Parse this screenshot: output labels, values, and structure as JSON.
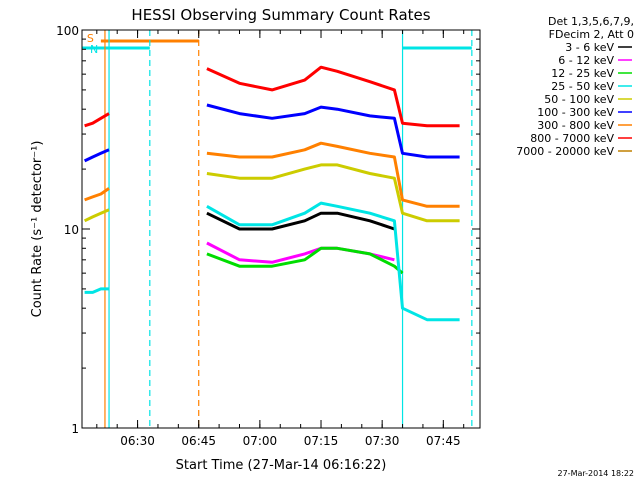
{
  "chart_data": {
    "type": "line",
    "title": "HESSI Observing Summary Count Rates",
    "xlabel": "Start Time (27-Mar-14 06:16:22)",
    "ylabel": "Count Rate (s⁻¹ detector⁻¹)",
    "y_scale": "log",
    "ylim": [
      1,
      100
    ],
    "xlim_minutes": [
      "06:16:22",
      "07:54:00"
    ],
    "x_ticks": [
      "06:30",
      "06:45",
      "07:00",
      "07:15",
      "07:30",
      "07:45"
    ],
    "y_ticks": [
      "1",
      "10",
      "100"
    ],
    "legend_header": [
      "Det 1,3,5,6,7,9,",
      "FDecim 2, Att 0"
    ],
    "legend_position": "right-outside",
    "footer": "27-Mar-2014 18:22",
    "flags": [
      {
        "label": "S",
        "color": "#ff8000",
        "start": "06:21",
        "end": "06:45"
      },
      {
        "label": "N",
        "color": "#00e5e5",
        "start": "06:16:22",
        "end": "06:33"
      },
      {
        "label": "",
        "color": "#00e5e5",
        "start": "07:35",
        "end": "07:52"
      }
    ],
    "markers": [
      {
        "time": "06:22",
        "color": "#ff8000",
        "style": "solid"
      },
      {
        "time": "06:23",
        "color": "#00e5e5",
        "style": "solid"
      },
      {
        "time": "06:33",
        "color": "#00e5e5",
        "style": "dashed"
      },
      {
        "time": "06:45",
        "color": "#ff8000",
        "style": "dashed"
      },
      {
        "time": "07:35",
        "color": "#00e5e5",
        "style": "solid"
      },
      {
        "time": "07:52",
        "color": "#00e5e5",
        "style": "dashed"
      }
    ],
    "x_sample_times": [
      "06:17",
      "06:19",
      "06:21",
      "06:23",
      "06:47",
      "06:55",
      "07:03",
      "07:11",
      "07:15",
      "07:19",
      "07:27",
      "07:33",
      "07:35",
      "07:41",
      "07:47",
      "07:49"
    ],
    "series": [
      {
        "name": "3 - 6 keV",
        "color": "#000000",
        "values": [
          null,
          null,
          null,
          null,
          12,
          10,
          10,
          11,
          12,
          12,
          11,
          10,
          null,
          null,
          null,
          null
        ]
      },
      {
        "name": "6 - 12 keV",
        "color": "#ff00ff",
        "values": [
          null,
          null,
          null,
          null,
          8.5,
          7,
          6.8,
          7.5,
          8,
          8,
          7.5,
          7,
          null,
          null,
          null,
          null
        ]
      },
      {
        "name": "12 - 25 keV",
        "color": "#00dd00",
        "values": [
          null,
          null,
          null,
          null,
          7.5,
          6.5,
          6.5,
          7,
          8,
          8,
          7.5,
          6.5,
          6,
          null,
          null,
          null
        ]
      },
      {
        "name": "25 - 50 keV",
        "color": "#00e5e5",
        "values": [
          4.8,
          4.8,
          5,
          5,
          13,
          10.5,
          10.5,
          12,
          13.5,
          13,
          12,
          11,
          4,
          3.5,
          3.5,
          3.5
        ]
      },
      {
        "name": "50 - 100 keV",
        "color": "#cccc00",
        "values": [
          11,
          11.5,
          12,
          12.5,
          19,
          18,
          18,
          20,
          21,
          21,
          19,
          18,
          12,
          11,
          11,
          11
        ]
      },
      {
        "name": "100 - 300 keV",
        "color": "#0000ff",
        "values": [
          22,
          23,
          24,
          25,
          42,
          38,
          36,
          38,
          41,
          40,
          37,
          36,
          24,
          23,
          23,
          23
        ]
      },
      {
        "name": "300 - 800 keV",
        "color": "#ff8000",
        "values": [
          14,
          14.5,
          15,
          16,
          24,
          23,
          23,
          25,
          27,
          26,
          24,
          23,
          14,
          13,
          13,
          13
        ]
      },
      {
        "name": "800 - 7000 keV",
        "color": "#ff0000",
        "values": [
          33,
          34,
          36,
          38,
          64,
          54,
          50,
          56,
          65,
          62,
          55,
          50,
          34,
          33,
          33,
          33
        ]
      },
      {
        "name": "7000 - 20000 keV",
        "color": "#c08000",
        "values": [
          null,
          null,
          null,
          null,
          null,
          null,
          null,
          null,
          null,
          null,
          null,
          null,
          null,
          null,
          null,
          null
        ]
      }
    ]
  }
}
